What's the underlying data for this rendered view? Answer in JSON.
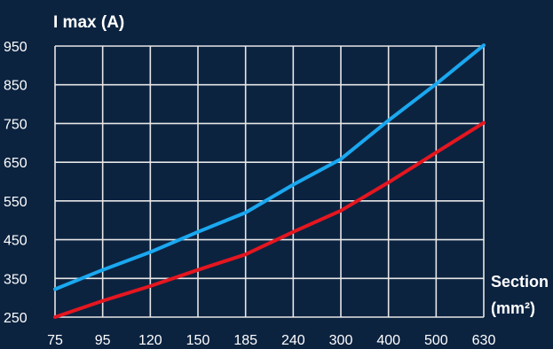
{
  "colors": {
    "background": "#0c2340",
    "grid": "#e6e6e6",
    "series_blue": "#1aa8f0",
    "series_red": "#e5161f",
    "text": "#ffffff"
  },
  "chart_data": {
    "type": "line",
    "title": "",
    "ylabel": "I max (A)",
    "xlabel_line1": "Section",
    "xlabel_line2": "(mm²)",
    "categories": [
      "75",
      "95",
      "120",
      "150",
      "185",
      "240",
      "300",
      "400",
      "500",
      "630"
    ],
    "yticks": [
      "250",
      "350",
      "450",
      "550",
      "650",
      "750",
      "850",
      "950"
    ],
    "ylim": [
      250,
      950
    ],
    "grid": true,
    "series": [
      {
        "color": "#1aa8f0",
        "values": [
          322,
          372,
          418,
          470,
          520,
          592,
          658,
          758,
          852,
          952
        ]
      },
      {
        "color": "#e5161f",
        "values": [
          250,
          292,
          330,
          372,
          412,
          470,
          525,
          598,
          675,
          752
        ]
      }
    ]
  }
}
